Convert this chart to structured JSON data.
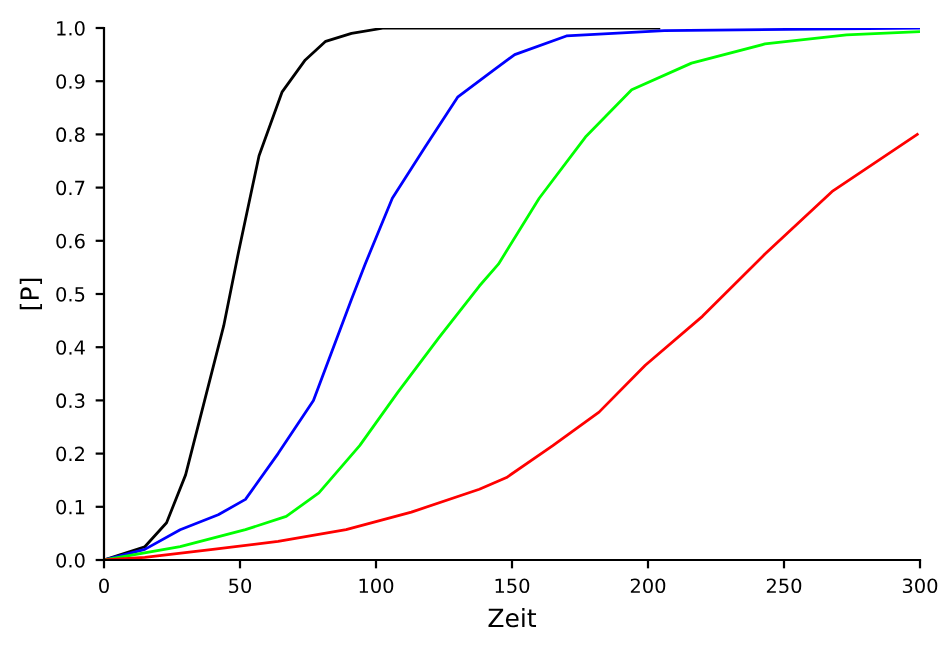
{
  "chart_data": {
    "type": "line",
    "xlabel": "Zeit",
    "ylabel": "[P]",
    "xlim": [
      0,
      300
    ],
    "ylim": [
      0,
      1
    ],
    "xticks": [
      0,
      50,
      100,
      150,
      200,
      250,
      300
    ],
    "yticks": [
      {
        "value": 0,
        "label": "0.0"
      },
      0.1,
      0.2,
      0.3,
      0.4,
      0.5,
      0.6,
      0.7,
      0.8,
      0.9,
      {
        "value": 1,
        "label": "1.0"
      }
    ],
    "grid": false,
    "marker": "none",
    "line_style": "solid",
    "series": [
      {
        "color": "#000000",
        "x": [
          0,
          15,
          23,
          30,
          37,
          44,
          49.5,
          57,
          65.5,
          74,
          81.5,
          91,
          103,
          204
        ],
        "values": [
          0,
          0.025,
          0.07,
          0.16,
          0.3,
          0.44,
          0.58,
          0.76,
          0.88,
          0.94,
          0.975,
          0.99,
          1.0,
          1.0
        ]
      },
      {
        "color": "#0000ff",
        "x": [
          0,
          15,
          28,
          42,
          52,
          64,
          77,
          91,
          96,
          106,
          118,
          130,
          143,
          151,
          170,
          206,
          300
        ],
        "values": [
          0,
          0.02,
          0.057,
          0.085,
          0.114,
          0.2,
          0.3,
          0.49,
          0.556,
          0.68,
          0.776,
          0.87,
          0.92,
          0.95,
          0.985,
          0.995,
          1.0
        ]
      },
      {
        "color": "#00ff00",
        "x": [
          0,
          28,
          52,
          67,
          79,
          94,
          108,
          123,
          138,
          145,
          160,
          177,
          194,
          216,
          243,
          273,
          300
        ],
        "values": [
          0,
          0.025,
          0.057,
          0.082,
          0.126,
          0.215,
          0.315,
          0.417,
          0.515,
          0.556,
          0.68,
          0.795,
          0.884,
          0.934,
          0.97,
          0.987,
          0.993
        ]
      },
      {
        "color": "#ff0000",
        "x": [
          0,
          15,
          40,
          64,
          89,
          113,
          138,
          148,
          165,
          182,
          199,
          220,
          243,
          268,
          299
        ],
        "values": [
          0,
          0.005,
          0.02,
          0.035,
          0.057,
          0.09,
          0.133,
          0.155,
          0.215,
          0.278,
          0.366,
          0.458,
          0.575,
          0.694,
          0.8
        ]
      }
    ]
  }
}
